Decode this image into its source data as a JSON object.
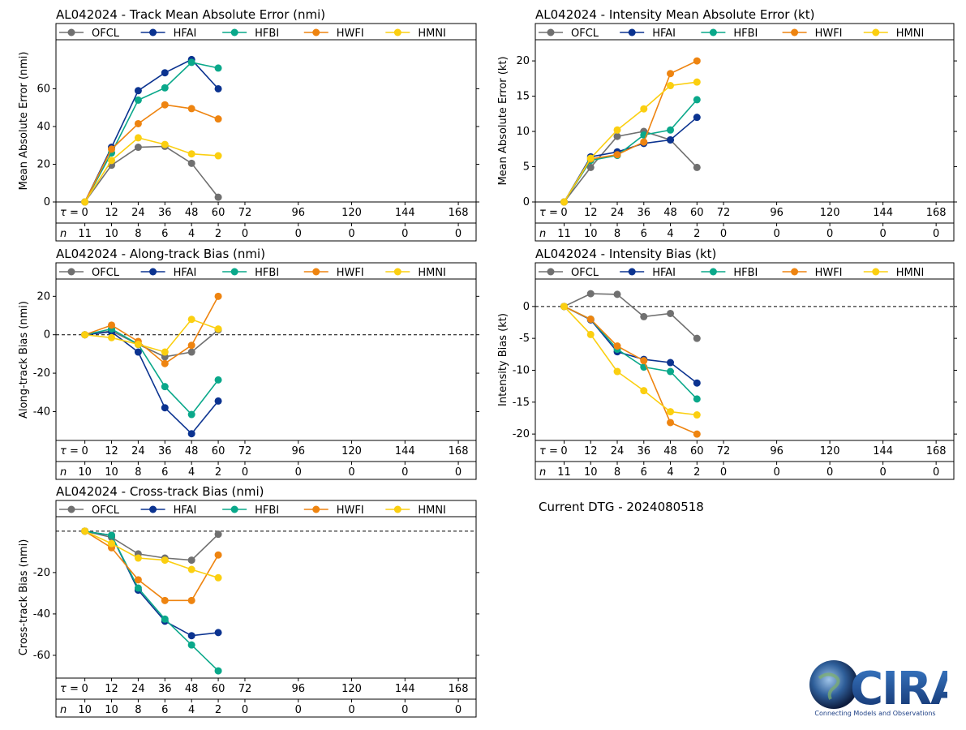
{
  "dtg_text": "Current DTG - 2024080518",
  "logo": {
    "text": "CIRA",
    "tagline": "Connecting Models and Observations"
  },
  "series_styles": [
    {
      "name": "OFCL",
      "color": "#707070"
    },
    {
      "name": "HFAI",
      "color": "#0b3390"
    },
    {
      "name": "HFBI",
      "color": "#0aa88a"
    },
    {
      "name": "HWFI",
      "color": "#ee8410"
    },
    {
      "name": "HMNI",
      "color": "#fbcf10"
    }
  ],
  "chart_data": [
    {
      "id": "track-mae",
      "type": "line",
      "title": "AL042024 - Track Mean Absolute Error (nmi)",
      "ylabel": "Mean Absolute Error (nmi)",
      "x": [
        0,
        12,
        24,
        36,
        48,
        60
      ],
      "xticks": [
        0,
        12,
        24,
        36,
        48,
        60,
        72,
        96,
        120,
        144,
        168
      ],
      "n": [
        11,
        10,
        8,
        6,
        4,
        2,
        0,
        0,
        0,
        0,
        0
      ],
      "xlim": [
        -13,
        176
      ],
      "ylim": [
        0,
        86
      ],
      "yticks": [
        0,
        20,
        40,
        60
      ],
      "zero_line": false,
      "series": [
        {
          "name": "OFCL",
          "values": [
            0,
            19.5,
            29,
            29.5,
            20.5,
            2.5
          ]
        },
        {
          "name": "HFAI",
          "values": [
            0,
            29,
            59,
            68.5,
            75.5,
            60
          ]
        },
        {
          "name": "HFBI",
          "values": [
            0,
            26,
            54,
            60.5,
            74,
            71
          ]
        },
        {
          "name": "HWFI",
          "values": [
            0,
            28,
            41.5,
            51.5,
            49.5,
            44
          ]
        },
        {
          "name": "HMNI",
          "values": [
            0,
            22,
            34,
            30.5,
            25.5,
            24.5
          ]
        }
      ]
    },
    {
      "id": "intensity-mae",
      "type": "line",
      "title": "AL042024 - Intensity Mean Absolute Error (kt)",
      "ylabel": "Mean Absolute Error (kt)",
      "x": [
        0,
        12,
        24,
        36,
        48,
        60
      ],
      "xticks": [
        0,
        12,
        24,
        36,
        48,
        60,
        72,
        96,
        120,
        144,
        168
      ],
      "n": [
        11,
        10,
        8,
        6,
        4,
        2,
        0,
        0,
        0,
        0,
        0
      ],
      "xlim": [
        -13,
        176
      ],
      "ylim": [
        0,
        23
      ],
      "yticks": [
        0,
        5,
        10,
        15,
        20
      ],
      "zero_line": false,
      "series": [
        {
          "name": "OFCL",
          "values": [
            0,
            4.9,
            9.3,
            10,
            8.8,
            4.9
          ]
        },
        {
          "name": "HFAI",
          "values": [
            0,
            6.4,
            7.1,
            8.3,
            8.8,
            12
          ]
        },
        {
          "name": "HFBI",
          "values": [
            0,
            5.9,
            6.6,
            9.5,
            10.2,
            14.5
          ]
        },
        {
          "name": "HWFI",
          "values": [
            0,
            6.1,
            6.7,
            8.5,
            18.2,
            20
          ]
        },
        {
          "name": "HMNI",
          "values": [
            0,
            6.2,
            10.2,
            13.2,
            16.5,
            17
          ]
        }
      ]
    },
    {
      "id": "along-track-bias",
      "type": "line",
      "title": "AL042024 - Along-track Bias (nmi)",
      "ylabel": "Along-track Bias (nmi)",
      "x": [
        0,
        12,
        24,
        36,
        48,
        60
      ],
      "xticks": [
        0,
        12,
        24,
        36,
        48,
        60,
        72,
        96,
        120,
        144,
        168
      ],
      "n": [
        10,
        10,
        8,
        6,
        4,
        2,
        0,
        0,
        0,
        0,
        0
      ],
      "xlim": [
        -13,
        176
      ],
      "ylim": [
        -55,
        29
      ],
      "yticks": [
        -40,
        -20,
        0,
        20
      ],
      "zero_line": true,
      "series": [
        {
          "name": "OFCL",
          "values": [
            0,
            2,
            -5,
            -11.5,
            -9,
            2.5
          ]
        },
        {
          "name": "HFAI",
          "values": [
            0,
            1.5,
            -9,
            -38,
            -51.5,
            -34.5
          ]
        },
        {
          "name": "HFBI",
          "values": [
            0,
            3,
            -5,
            -27,
            -41.5,
            -23.5
          ]
        },
        {
          "name": "HWFI",
          "values": [
            0,
            5,
            -3.5,
            -15,
            -5.5,
            20
          ]
        },
        {
          "name": "HMNI",
          "values": [
            0,
            -1.5,
            -5,
            -9,
            8,
            3
          ]
        }
      ]
    },
    {
      "id": "intensity-bias",
      "type": "line",
      "title": "AL042024 - Intensity Bias (kt)",
      "ylabel": "Intensity Bias (kt)",
      "x": [
        0,
        12,
        24,
        36,
        48,
        60
      ],
      "xticks": [
        0,
        12,
        24,
        36,
        48,
        60,
        72,
        96,
        120,
        144,
        168
      ],
      "n": [
        11,
        10,
        8,
        6,
        4,
        2,
        0,
        0,
        0,
        0,
        0
      ],
      "xlim": [
        -13,
        176
      ],
      "ylim": [
        -21,
        4.3
      ],
      "yticks": [
        -20,
        -15,
        -10,
        -5,
        0
      ],
      "zero_line": true,
      "series": [
        {
          "name": "OFCL",
          "values": [
            0,
            2,
            1.9,
            -1.6,
            -1.1,
            -5
          ]
        },
        {
          "name": "HFAI",
          "values": [
            0,
            -2.1,
            -7.1,
            -8.3,
            -8.8,
            -12
          ]
        },
        {
          "name": "HFBI",
          "values": [
            0,
            -2,
            -6.7,
            -9.5,
            -10.2,
            -14.5
          ]
        },
        {
          "name": "HWFI",
          "values": [
            0,
            -2,
            -6.2,
            -8.5,
            -18.2,
            -20
          ]
        },
        {
          "name": "HMNI",
          "values": [
            0,
            -4.4,
            -10.2,
            -13.2,
            -16.5,
            -17
          ]
        }
      ]
    },
    {
      "id": "cross-track-bias",
      "type": "line",
      "title": "AL042024 - Cross-track Bias (nmi)",
      "ylabel": "Cross-track Bias (nmi)",
      "x": [
        0,
        12,
        24,
        36,
        48,
        60
      ],
      "xticks": [
        0,
        12,
        24,
        36,
        48,
        60,
        72,
        96,
        120,
        144,
        168
      ],
      "n": [
        10,
        10,
        8,
        6,
        4,
        2,
        0,
        0,
        0,
        0,
        0
      ],
      "xlim": [
        -13,
        176
      ],
      "ylim": [
        -71,
        7
      ],
      "yticks": [
        -60,
        -40,
        -20
      ],
      "zero_line": true,
      "series": [
        {
          "name": "OFCL",
          "values": [
            0,
            -3,
            -11,
            -13,
            -14,
            -1.5
          ]
        },
        {
          "name": "HFAI",
          "values": [
            0,
            -2,
            -28.5,
            -43.5,
            -50.5,
            -49
          ]
        },
        {
          "name": "HFBI",
          "values": [
            0,
            -2,
            -27.5,
            -42.5,
            -55,
            -67.5
          ]
        },
        {
          "name": "HWFI",
          "values": [
            0,
            -8,
            -23.5,
            -33.5,
            -33.5,
            -11.5
          ]
        },
        {
          "name": "HMNI",
          "values": [
            0,
            -6,
            -13,
            -14,
            -18.5,
            -22.5
          ]
        }
      ]
    }
  ]
}
